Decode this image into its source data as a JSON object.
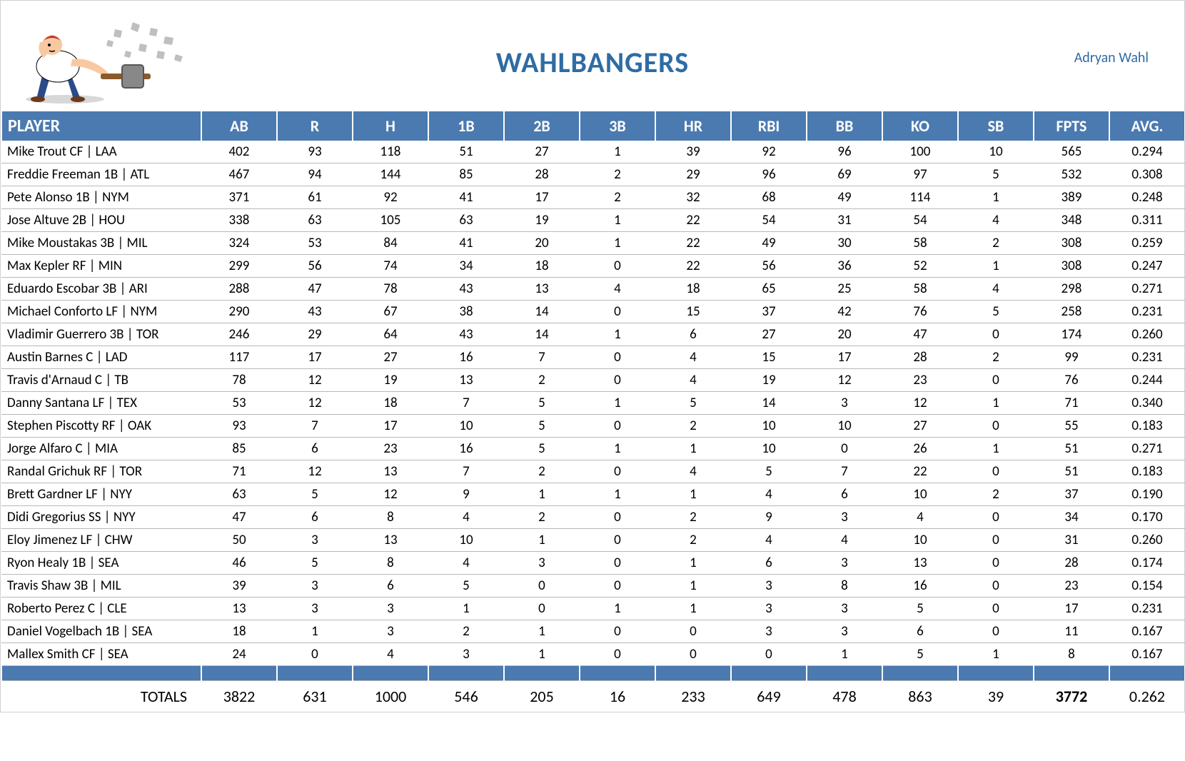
{
  "team_title": "WAHLBANGERS",
  "owner_name": "Adryan Wahl",
  "colors": {
    "header_bg": "#4a7ab0",
    "header_text": "#ffffff",
    "title_text": "#2e6ca4",
    "link_text": "#2e6ca4",
    "row_border": "#b8b8b8",
    "cell_text": "#000000"
  },
  "columns": [
    "PLAYER",
    "AB",
    "R",
    "H",
    "1B",
    "2B",
    "3B",
    "HR",
    "RBI",
    "BB",
    "KO",
    "SB",
    "FPTS",
    "AVG."
  ],
  "players": [
    {
      "name": "Mike Trout CF | LAA",
      "ab": "402",
      "r": "93",
      "h": "118",
      "b1": "51",
      "b2": "27",
      "b3": "1",
      "hr": "39",
      "rbi": "92",
      "bb": "96",
      "ko": "100",
      "sb": "10",
      "fpts": "565",
      "avg": "0.294"
    },
    {
      "name": "Freddie Freeman 1B | ATL",
      "ab": "467",
      "r": "94",
      "h": "144",
      "b1": "85",
      "b2": "28",
      "b3": "2",
      "hr": "29",
      "rbi": "96",
      "bb": "69",
      "ko": "97",
      "sb": "5",
      "fpts": "532",
      "avg": "0.308"
    },
    {
      "name": "Pete Alonso 1B | NYM",
      "ab": "371",
      "r": "61",
      "h": "92",
      "b1": "41",
      "b2": "17",
      "b3": "2",
      "hr": "32",
      "rbi": "68",
      "bb": "49",
      "ko": "114",
      "sb": "1",
      "fpts": "389",
      "avg": "0.248"
    },
    {
      "name": "Jose Altuve 2B | HOU",
      "ab": "338",
      "r": "63",
      "h": "105",
      "b1": "63",
      "b2": "19",
      "b3": "1",
      "hr": "22",
      "rbi": "54",
      "bb": "31",
      "ko": "54",
      "sb": "4",
      "fpts": "348",
      "avg": "0.311"
    },
    {
      "name": "Mike Moustakas 3B | MIL",
      "ab": "324",
      "r": "53",
      "h": "84",
      "b1": "41",
      "b2": "20",
      "b3": "1",
      "hr": "22",
      "rbi": "49",
      "bb": "30",
      "ko": "58",
      "sb": "2",
      "fpts": "308",
      "avg": "0.259"
    },
    {
      "name": "Max Kepler RF | MIN",
      "ab": "299",
      "r": "56",
      "h": "74",
      "b1": "34",
      "b2": "18",
      "b3": "0",
      "hr": "22",
      "rbi": "56",
      "bb": "36",
      "ko": "52",
      "sb": "1",
      "fpts": "308",
      "avg": "0.247"
    },
    {
      "name": "Eduardo Escobar 3B | ARI",
      "ab": "288",
      "r": "47",
      "h": "78",
      "b1": "43",
      "b2": "13",
      "b3": "4",
      "hr": "18",
      "rbi": "65",
      "bb": "25",
      "ko": "58",
      "sb": "4",
      "fpts": "298",
      "avg": "0.271"
    },
    {
      "name": "Michael Conforto LF | NYM",
      "ab": "290",
      "r": "43",
      "h": "67",
      "b1": "38",
      "b2": "14",
      "b3": "0",
      "hr": "15",
      "rbi": "37",
      "bb": "42",
      "ko": "76",
      "sb": "5",
      "fpts": "258",
      "avg": "0.231"
    },
    {
      "name": "Vladimir Guerrero 3B | TOR",
      "ab": "246",
      "r": "29",
      "h": "64",
      "b1": "43",
      "b2": "14",
      "b3": "1",
      "hr": "6",
      "rbi": "27",
      "bb": "20",
      "ko": "47",
      "sb": "0",
      "fpts": "174",
      "avg": "0.260"
    },
    {
      "name": "Austin Barnes C | LAD",
      "ab": "117",
      "r": "17",
      "h": "27",
      "b1": "16",
      "b2": "7",
      "b3": "0",
      "hr": "4",
      "rbi": "15",
      "bb": "17",
      "ko": "28",
      "sb": "2",
      "fpts": "99",
      "avg": "0.231"
    },
    {
      "name": "Travis d'Arnaud C | TB",
      "ab": "78",
      "r": "12",
      "h": "19",
      "b1": "13",
      "b2": "2",
      "b3": "0",
      "hr": "4",
      "rbi": "19",
      "bb": "12",
      "ko": "23",
      "sb": "0",
      "fpts": "76",
      "avg": "0.244"
    },
    {
      "name": "Danny Santana LF | TEX",
      "ab": "53",
      "r": "12",
      "h": "18",
      "b1": "7",
      "b2": "5",
      "b3": "1",
      "hr": "5",
      "rbi": "14",
      "bb": "3",
      "ko": "12",
      "sb": "1",
      "fpts": "71",
      "avg": "0.340"
    },
    {
      "name": "Stephen Piscotty RF | OAK",
      "ab": "93",
      "r": "7",
      "h": "17",
      "b1": "10",
      "b2": "5",
      "b3": "0",
      "hr": "2",
      "rbi": "10",
      "bb": "10",
      "ko": "27",
      "sb": "0",
      "fpts": "55",
      "avg": "0.183"
    },
    {
      "name": "Jorge Alfaro C | MIA",
      "ab": "85",
      "r": "6",
      "h": "23",
      "b1": "16",
      "b2": "5",
      "b3": "1",
      "hr": "1",
      "rbi": "10",
      "bb": "0",
      "ko": "26",
      "sb": "1",
      "fpts": "51",
      "avg": "0.271"
    },
    {
      "name": "Randal Grichuk RF | TOR",
      "ab": "71",
      "r": "12",
      "h": "13",
      "b1": "7",
      "b2": "2",
      "b3": "0",
      "hr": "4",
      "rbi": "5",
      "bb": "7",
      "ko": "22",
      "sb": "0",
      "fpts": "51",
      "avg": "0.183"
    },
    {
      "name": "Brett Gardner LF | NYY",
      "ab": "63",
      "r": "5",
      "h": "12",
      "b1": "9",
      "b2": "1",
      "b3": "1",
      "hr": "1",
      "rbi": "4",
      "bb": "6",
      "ko": "10",
      "sb": "2",
      "fpts": "37",
      "avg": "0.190"
    },
    {
      "name": "Didi Gregorius SS | NYY",
      "ab": "47",
      "r": "6",
      "h": "8",
      "b1": "4",
      "b2": "2",
      "b3": "0",
      "hr": "2",
      "rbi": "9",
      "bb": "3",
      "ko": "4",
      "sb": "0",
      "fpts": "34",
      "avg": "0.170"
    },
    {
      "name": "Eloy Jimenez LF | CHW",
      "ab": "50",
      "r": "3",
      "h": "13",
      "b1": "10",
      "b2": "1",
      "b3": "0",
      "hr": "2",
      "rbi": "4",
      "bb": "4",
      "ko": "10",
      "sb": "0",
      "fpts": "31",
      "avg": "0.260"
    },
    {
      "name": "Ryon Healy 1B | SEA",
      "ab": "46",
      "r": "5",
      "h": "8",
      "b1": "4",
      "b2": "3",
      "b3": "0",
      "hr": "1",
      "rbi": "6",
      "bb": "3",
      "ko": "13",
      "sb": "0",
      "fpts": "28",
      "avg": "0.174"
    },
    {
      "name": "Travis Shaw 3B | MIL",
      "ab": "39",
      "r": "3",
      "h": "6",
      "b1": "5",
      "b2": "0",
      "b3": "0",
      "hr": "1",
      "rbi": "3",
      "bb": "8",
      "ko": "16",
      "sb": "0",
      "fpts": "23",
      "avg": "0.154"
    },
    {
      "name": "Roberto Perez C | CLE",
      "ab": "13",
      "r": "3",
      "h": "3",
      "b1": "1",
      "b2": "0",
      "b3": "1",
      "hr": "1",
      "rbi": "3",
      "bb": "3",
      "ko": "5",
      "sb": "0",
      "fpts": "17",
      "avg": "0.231"
    },
    {
      "name": "Daniel Vogelbach 1B | SEA",
      "ab": "18",
      "r": "1",
      "h": "3",
      "b1": "2",
      "b2": "1",
      "b3": "0",
      "hr": "0",
      "rbi": "3",
      "bb": "3",
      "ko": "6",
      "sb": "0",
      "fpts": "11",
      "avg": "0.167"
    },
    {
      "name": "Mallex Smith CF | SEA",
      "ab": "24",
      "r": "0",
      "h": "4",
      "b1": "3",
      "b2": "1",
      "b3": "0",
      "hr": "0",
      "rbi": "0",
      "bb": "1",
      "ko": "5",
      "sb": "1",
      "fpts": "8",
      "avg": "0.167"
    }
  ],
  "totals": {
    "label": "TOTALS",
    "ab": "3822",
    "r": "631",
    "h": "1000",
    "b1": "546",
    "b2": "205",
    "b3": "16",
    "hr": "233",
    "rbi": "649",
    "bb": "478",
    "ko": "863",
    "sb": "39",
    "fpts": "3772",
    "avg": "0.262"
  }
}
